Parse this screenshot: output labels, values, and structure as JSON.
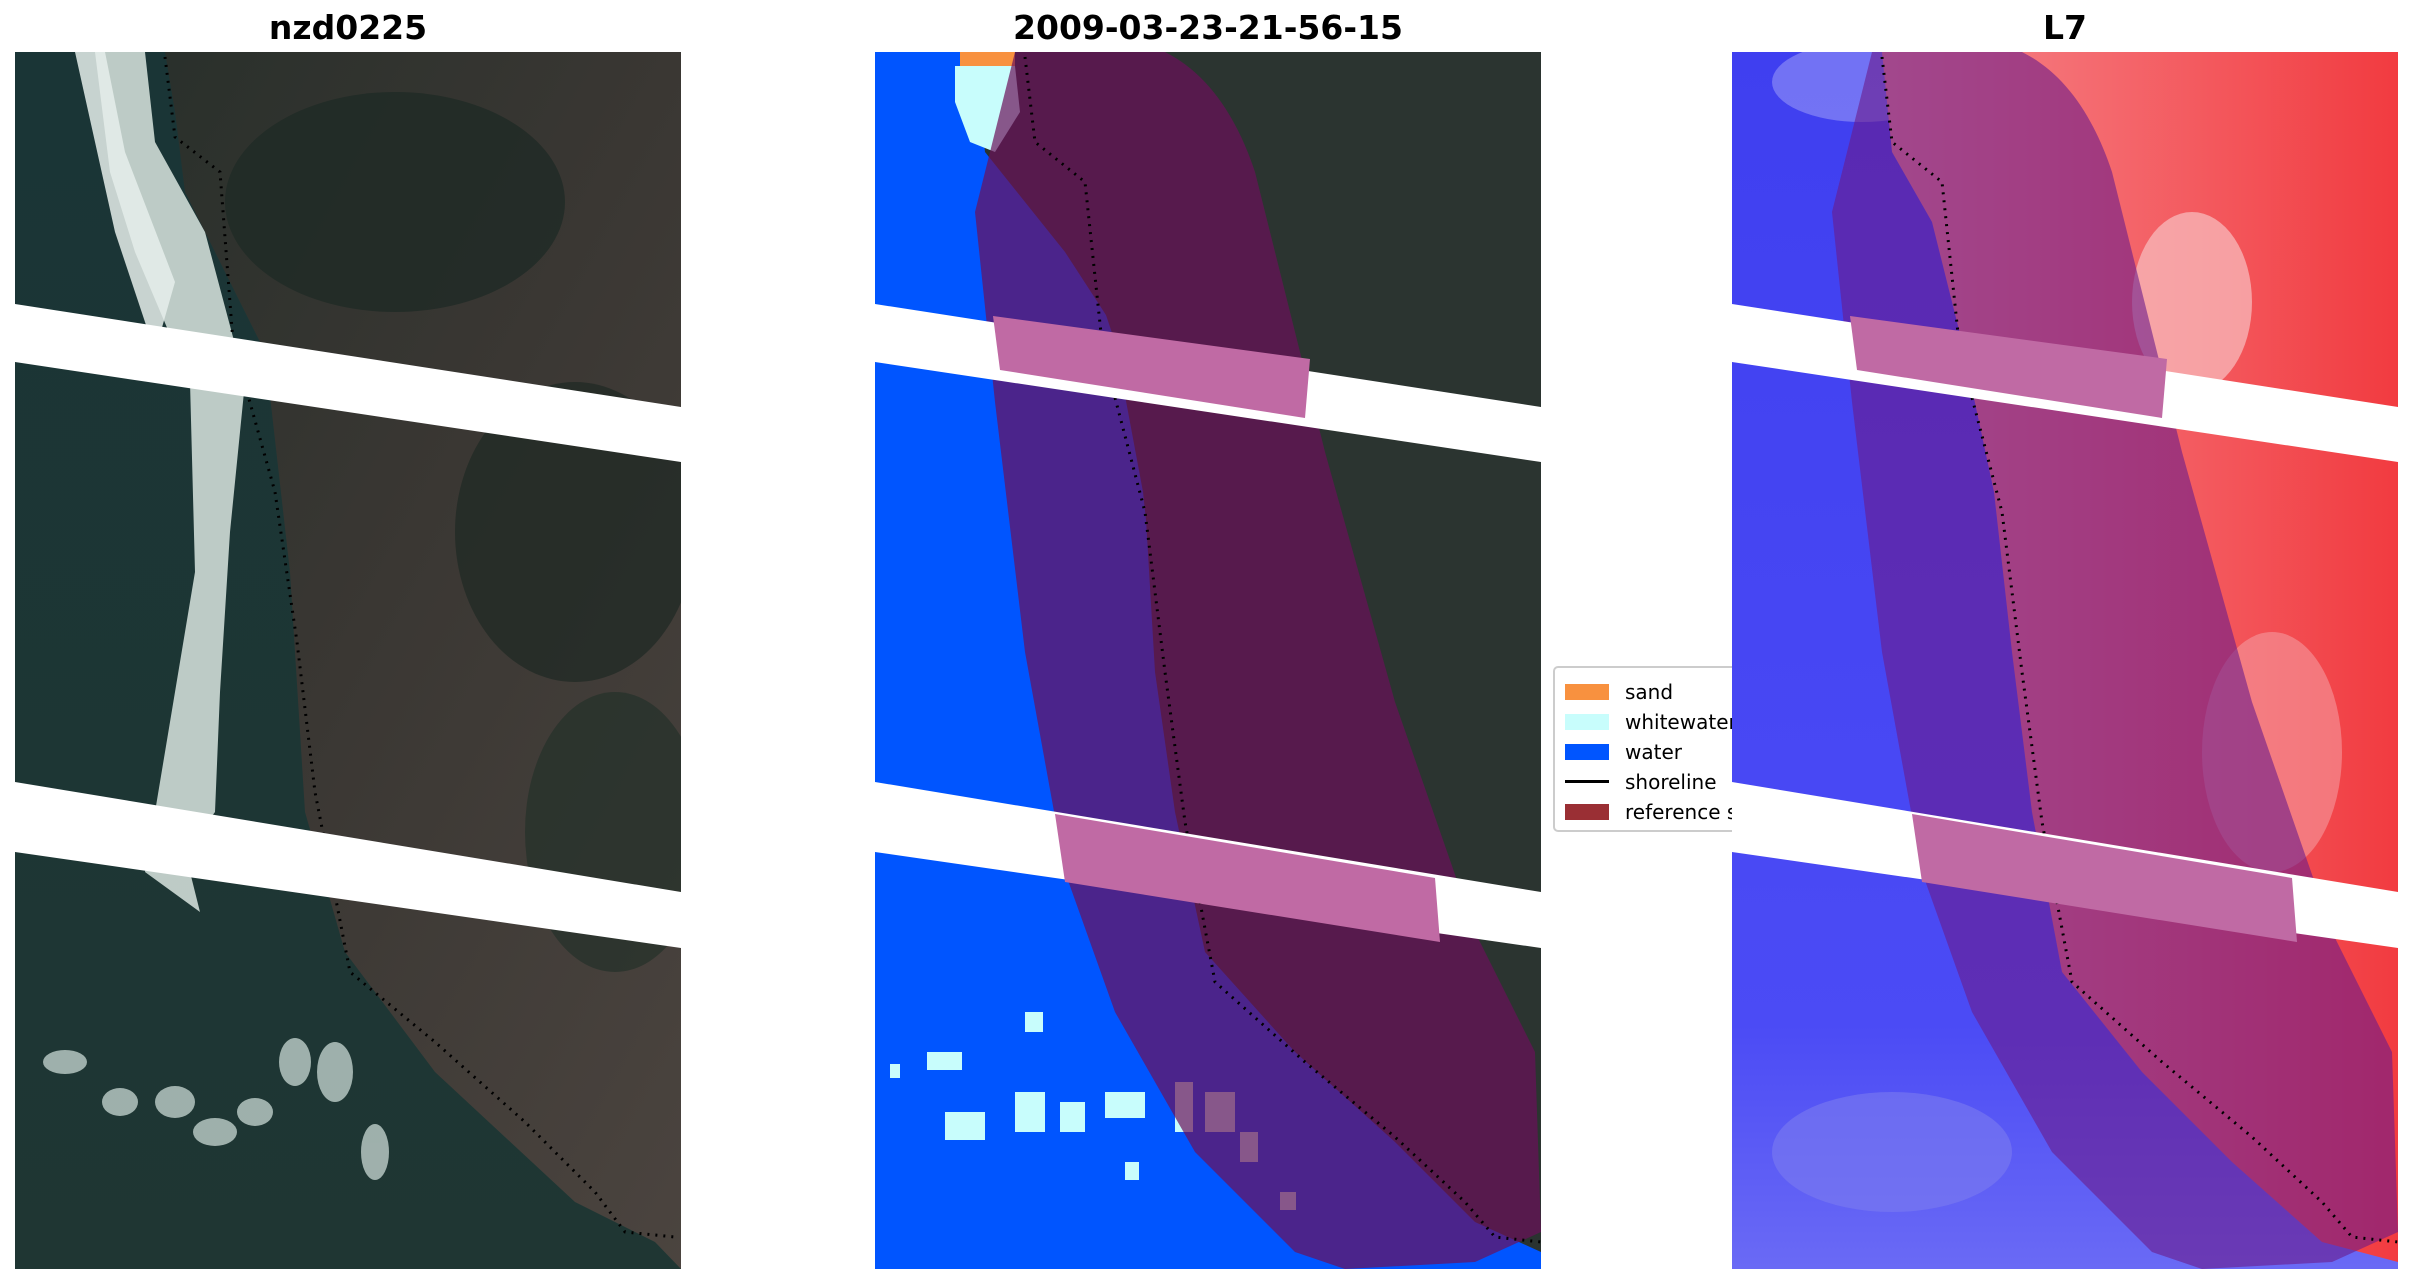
{
  "panels": [
    {
      "title": "nzd0225"
    },
    {
      "title": "2009-03-23-21-56-15"
    },
    {
      "title": "L7"
    }
  ],
  "legend": {
    "items": [
      {
        "label": "sand",
        "color": "#f8913f",
        "kind": "patch"
      },
      {
        "label": "whitewater",
        "color": "#c8fdfc",
        "kind": "patch"
      },
      {
        "label": "water",
        "color": "#0055ff",
        "kind": "patch"
      },
      {
        "label": "shoreline",
        "color": "#000000",
        "kind": "line"
      },
      {
        "label": "reference shoreline buffer",
        "color": "#9a2f34",
        "kind": "patch"
      }
    ]
  },
  "colors": {
    "land_dark": "#26302b",
    "land_mid": "#3e3a37",
    "sea": "#1f3b3e",
    "surf": "#d7e3df",
    "water_class": "#0055ff",
    "whitewater_class": "#c8fdfc",
    "sand_class": "#f8913f",
    "buffer": "#8b1e4a",
    "index_water": "#3a3cf2",
    "index_land": "#f2474d",
    "gap": "#ffffff"
  }
}
